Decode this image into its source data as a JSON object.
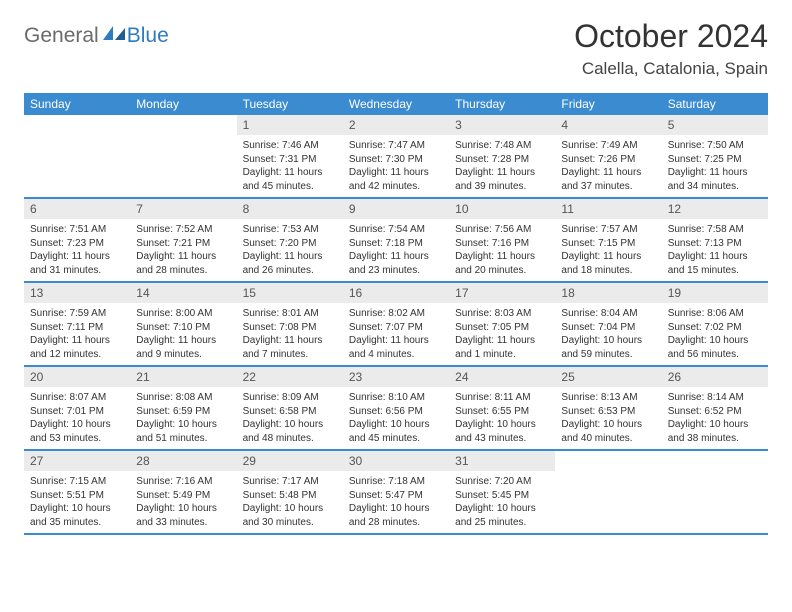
{
  "logo": {
    "text1": "General",
    "text2": "Blue"
  },
  "title": "October 2024",
  "location": "Calella, Catalonia, Spain",
  "colors": {
    "header_bg": "#3b8bd0",
    "header_text": "#ffffff",
    "daynum_bg": "#ebebeb",
    "daynum_text": "#555555",
    "body_text": "#333333",
    "logo_gray": "#6b6b6b",
    "logo_blue": "#2e7cc0",
    "border": "#3b8bd0"
  },
  "day_names": [
    "Sunday",
    "Monday",
    "Tuesday",
    "Wednesday",
    "Thursday",
    "Friday",
    "Saturday"
  ],
  "weeks": [
    [
      {
        "num": "",
        "sunrise": "",
        "sunset": "",
        "daylight": ""
      },
      {
        "num": "",
        "sunrise": "",
        "sunset": "",
        "daylight": ""
      },
      {
        "num": "1",
        "sunrise": "Sunrise: 7:46 AM",
        "sunset": "Sunset: 7:31 PM",
        "daylight": "Daylight: 11 hours and 45 minutes."
      },
      {
        "num": "2",
        "sunrise": "Sunrise: 7:47 AM",
        "sunset": "Sunset: 7:30 PM",
        "daylight": "Daylight: 11 hours and 42 minutes."
      },
      {
        "num": "3",
        "sunrise": "Sunrise: 7:48 AM",
        "sunset": "Sunset: 7:28 PM",
        "daylight": "Daylight: 11 hours and 39 minutes."
      },
      {
        "num": "4",
        "sunrise": "Sunrise: 7:49 AM",
        "sunset": "Sunset: 7:26 PM",
        "daylight": "Daylight: 11 hours and 37 minutes."
      },
      {
        "num": "5",
        "sunrise": "Sunrise: 7:50 AM",
        "sunset": "Sunset: 7:25 PM",
        "daylight": "Daylight: 11 hours and 34 minutes."
      }
    ],
    [
      {
        "num": "6",
        "sunrise": "Sunrise: 7:51 AM",
        "sunset": "Sunset: 7:23 PM",
        "daylight": "Daylight: 11 hours and 31 minutes."
      },
      {
        "num": "7",
        "sunrise": "Sunrise: 7:52 AM",
        "sunset": "Sunset: 7:21 PM",
        "daylight": "Daylight: 11 hours and 28 minutes."
      },
      {
        "num": "8",
        "sunrise": "Sunrise: 7:53 AM",
        "sunset": "Sunset: 7:20 PM",
        "daylight": "Daylight: 11 hours and 26 minutes."
      },
      {
        "num": "9",
        "sunrise": "Sunrise: 7:54 AM",
        "sunset": "Sunset: 7:18 PM",
        "daylight": "Daylight: 11 hours and 23 minutes."
      },
      {
        "num": "10",
        "sunrise": "Sunrise: 7:56 AM",
        "sunset": "Sunset: 7:16 PM",
        "daylight": "Daylight: 11 hours and 20 minutes."
      },
      {
        "num": "11",
        "sunrise": "Sunrise: 7:57 AM",
        "sunset": "Sunset: 7:15 PM",
        "daylight": "Daylight: 11 hours and 18 minutes."
      },
      {
        "num": "12",
        "sunrise": "Sunrise: 7:58 AM",
        "sunset": "Sunset: 7:13 PM",
        "daylight": "Daylight: 11 hours and 15 minutes."
      }
    ],
    [
      {
        "num": "13",
        "sunrise": "Sunrise: 7:59 AM",
        "sunset": "Sunset: 7:11 PM",
        "daylight": "Daylight: 11 hours and 12 minutes."
      },
      {
        "num": "14",
        "sunrise": "Sunrise: 8:00 AM",
        "sunset": "Sunset: 7:10 PM",
        "daylight": "Daylight: 11 hours and 9 minutes."
      },
      {
        "num": "15",
        "sunrise": "Sunrise: 8:01 AM",
        "sunset": "Sunset: 7:08 PM",
        "daylight": "Daylight: 11 hours and 7 minutes."
      },
      {
        "num": "16",
        "sunrise": "Sunrise: 8:02 AM",
        "sunset": "Sunset: 7:07 PM",
        "daylight": "Daylight: 11 hours and 4 minutes."
      },
      {
        "num": "17",
        "sunrise": "Sunrise: 8:03 AM",
        "sunset": "Sunset: 7:05 PM",
        "daylight": "Daylight: 11 hours and 1 minute."
      },
      {
        "num": "18",
        "sunrise": "Sunrise: 8:04 AM",
        "sunset": "Sunset: 7:04 PM",
        "daylight": "Daylight: 10 hours and 59 minutes."
      },
      {
        "num": "19",
        "sunrise": "Sunrise: 8:06 AM",
        "sunset": "Sunset: 7:02 PM",
        "daylight": "Daylight: 10 hours and 56 minutes."
      }
    ],
    [
      {
        "num": "20",
        "sunrise": "Sunrise: 8:07 AM",
        "sunset": "Sunset: 7:01 PM",
        "daylight": "Daylight: 10 hours and 53 minutes."
      },
      {
        "num": "21",
        "sunrise": "Sunrise: 8:08 AM",
        "sunset": "Sunset: 6:59 PM",
        "daylight": "Daylight: 10 hours and 51 minutes."
      },
      {
        "num": "22",
        "sunrise": "Sunrise: 8:09 AM",
        "sunset": "Sunset: 6:58 PM",
        "daylight": "Daylight: 10 hours and 48 minutes."
      },
      {
        "num": "23",
        "sunrise": "Sunrise: 8:10 AM",
        "sunset": "Sunset: 6:56 PM",
        "daylight": "Daylight: 10 hours and 45 minutes."
      },
      {
        "num": "24",
        "sunrise": "Sunrise: 8:11 AM",
        "sunset": "Sunset: 6:55 PM",
        "daylight": "Daylight: 10 hours and 43 minutes."
      },
      {
        "num": "25",
        "sunrise": "Sunrise: 8:13 AM",
        "sunset": "Sunset: 6:53 PM",
        "daylight": "Daylight: 10 hours and 40 minutes."
      },
      {
        "num": "26",
        "sunrise": "Sunrise: 8:14 AM",
        "sunset": "Sunset: 6:52 PM",
        "daylight": "Daylight: 10 hours and 38 minutes."
      }
    ],
    [
      {
        "num": "27",
        "sunrise": "Sunrise: 7:15 AM",
        "sunset": "Sunset: 5:51 PM",
        "daylight": "Daylight: 10 hours and 35 minutes."
      },
      {
        "num": "28",
        "sunrise": "Sunrise: 7:16 AM",
        "sunset": "Sunset: 5:49 PM",
        "daylight": "Daylight: 10 hours and 33 minutes."
      },
      {
        "num": "29",
        "sunrise": "Sunrise: 7:17 AM",
        "sunset": "Sunset: 5:48 PM",
        "daylight": "Daylight: 10 hours and 30 minutes."
      },
      {
        "num": "30",
        "sunrise": "Sunrise: 7:18 AM",
        "sunset": "Sunset: 5:47 PM",
        "daylight": "Daylight: 10 hours and 28 minutes."
      },
      {
        "num": "31",
        "sunrise": "Sunrise: 7:20 AM",
        "sunset": "Sunset: 5:45 PM",
        "daylight": "Daylight: 10 hours and 25 minutes."
      },
      {
        "num": "",
        "sunrise": "",
        "sunset": "",
        "daylight": ""
      },
      {
        "num": "",
        "sunrise": "",
        "sunset": "",
        "daylight": ""
      }
    ]
  ]
}
